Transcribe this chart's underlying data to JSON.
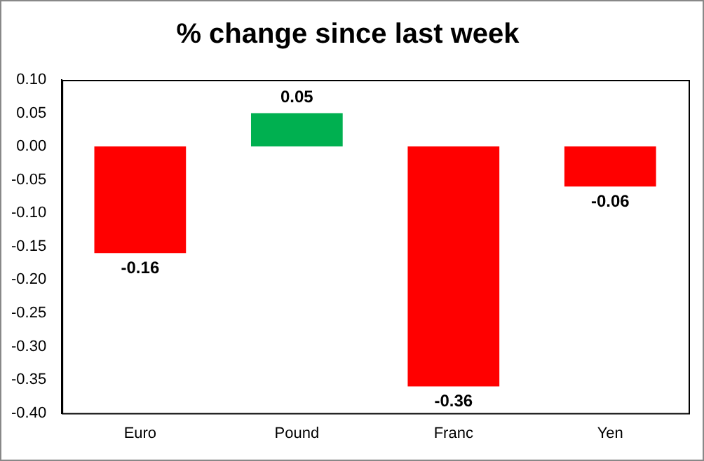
{
  "chart_data": {
    "type": "bar",
    "title": "% change since last week",
    "categories": [
      "Euro",
      "Pound",
      "Franc",
      "Yen"
    ],
    "values": [
      -0.16,
      0.05,
      -0.36,
      -0.06
    ],
    "colors": [
      "#ff0000",
      "#00b050",
      "#ff0000",
      "#ff0000"
    ],
    "ylim": [
      -0.4,
      0.1
    ],
    "yticks": [
      {
        "value": -0.4,
        "label": "-0.40"
      },
      {
        "value": -0.35,
        "label": "-0.35"
      },
      {
        "value": -0.3,
        "label": "-0.30"
      },
      {
        "value": -0.25,
        "label": "-0.25"
      },
      {
        "value": -0.2,
        "label": "-0.20"
      },
      {
        "value": -0.15,
        "label": "-0.15"
      },
      {
        "value": -0.1,
        "label": "-0.10"
      },
      {
        "value": -0.05,
        "label": "-0.05"
      },
      {
        "value": 0,
        "label": "0.00"
      },
      {
        "value": 0.05,
        "label": "0.05"
      },
      {
        "value": 0.1,
        "label": "0.10"
      }
    ],
    "data_labels": true,
    "grid": false,
    "legend": false
  }
}
